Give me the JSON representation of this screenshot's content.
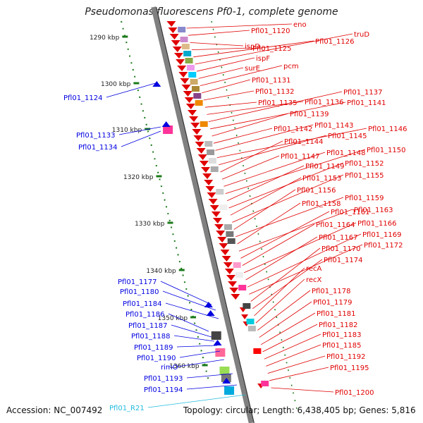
{
  "title": "Pseudomonas fluorescens Pf0-1, complete genome",
  "footer": {
    "accession": "Accession: NC_007492",
    "stats": "Topology: circular; Length: 6,438,405 bp; Genes: 5,816"
  },
  "colors": {
    "forward_gene": "#e00000",
    "reverse_gene": "#0000e0",
    "rna_gene": "#22bbdd",
    "tick": "#1a7a1a",
    "axis": "#808080"
  },
  "ruler": [
    {
      "label": "1290 kbp"
    },
    {
      "label": "1300 kbp"
    },
    {
      "label": "1310 kbp"
    },
    {
      "label": "1320 kbp"
    },
    {
      "label": "1330 kbp"
    },
    {
      "label": "1340 kbp"
    },
    {
      "label": "1350 kbp"
    },
    {
      "label": "1360 kbp"
    }
  ],
  "right_labels": [
    "eno",
    "Pfl01_1120",
    "ispD",
    "Pfl01_1125",
    "Pfl01_1126",
    "truD",
    "ispF",
    "surE",
    "pcm",
    "Pfl01_1131",
    "Pfl01_1132",
    "Pfl01_1135",
    "Pfl01_1136",
    "Pfl01_1137",
    "Pfl01_1141",
    "Pfl01_1139",
    "Pfl01_1142",
    "Pfl01_1143",
    "Pfl01_1146",
    "Pfl01_1145",
    "Pfl01_1144",
    "Pfl01_1147",
    "Pfl01_1148",
    "Pfl01_1150",
    "Pfl01_1149",
    "Pfl01_1152",
    "Pfl01_1153",
    "Pfl01_1155",
    "Pfl01_1156",
    "Pfl01_1159",
    "Pfl01_1158",
    "Pfl01_1163",
    "Pfl01_1161",
    "Pfl01_1164",
    "Pfl01_1166",
    "Pfl01_1167",
    "Pfl01_1169",
    "Pfl01_1172",
    "Pfl01_1170",
    "Pfl01_1174",
    "recA",
    "recX",
    "Pfl01_1178",
    "Pfl01_1179",
    "Pfl01_1181",
    "Pfl01_1182",
    "Pfl01_1183",
    "Pfl01_1185",
    "Pfl01_1192",
    "Pfl01_1195",
    "Pfl01_1200"
  ],
  "left_labels": [
    "Pfl01_1124",
    "Pfl01_1133",
    "Pfl01_1134",
    "Pfl01_1177",
    "Pfl01_1180",
    "Pfl01_1184",
    "Pfl01_1186",
    "Pfl01_1187",
    "Pfl01_1188",
    "Pfl01_1189",
    "Pfl01_1190",
    "rimO",
    "Pfl01_1193",
    "Pfl01_1194",
    "Pfl01_R21"
  ]
}
